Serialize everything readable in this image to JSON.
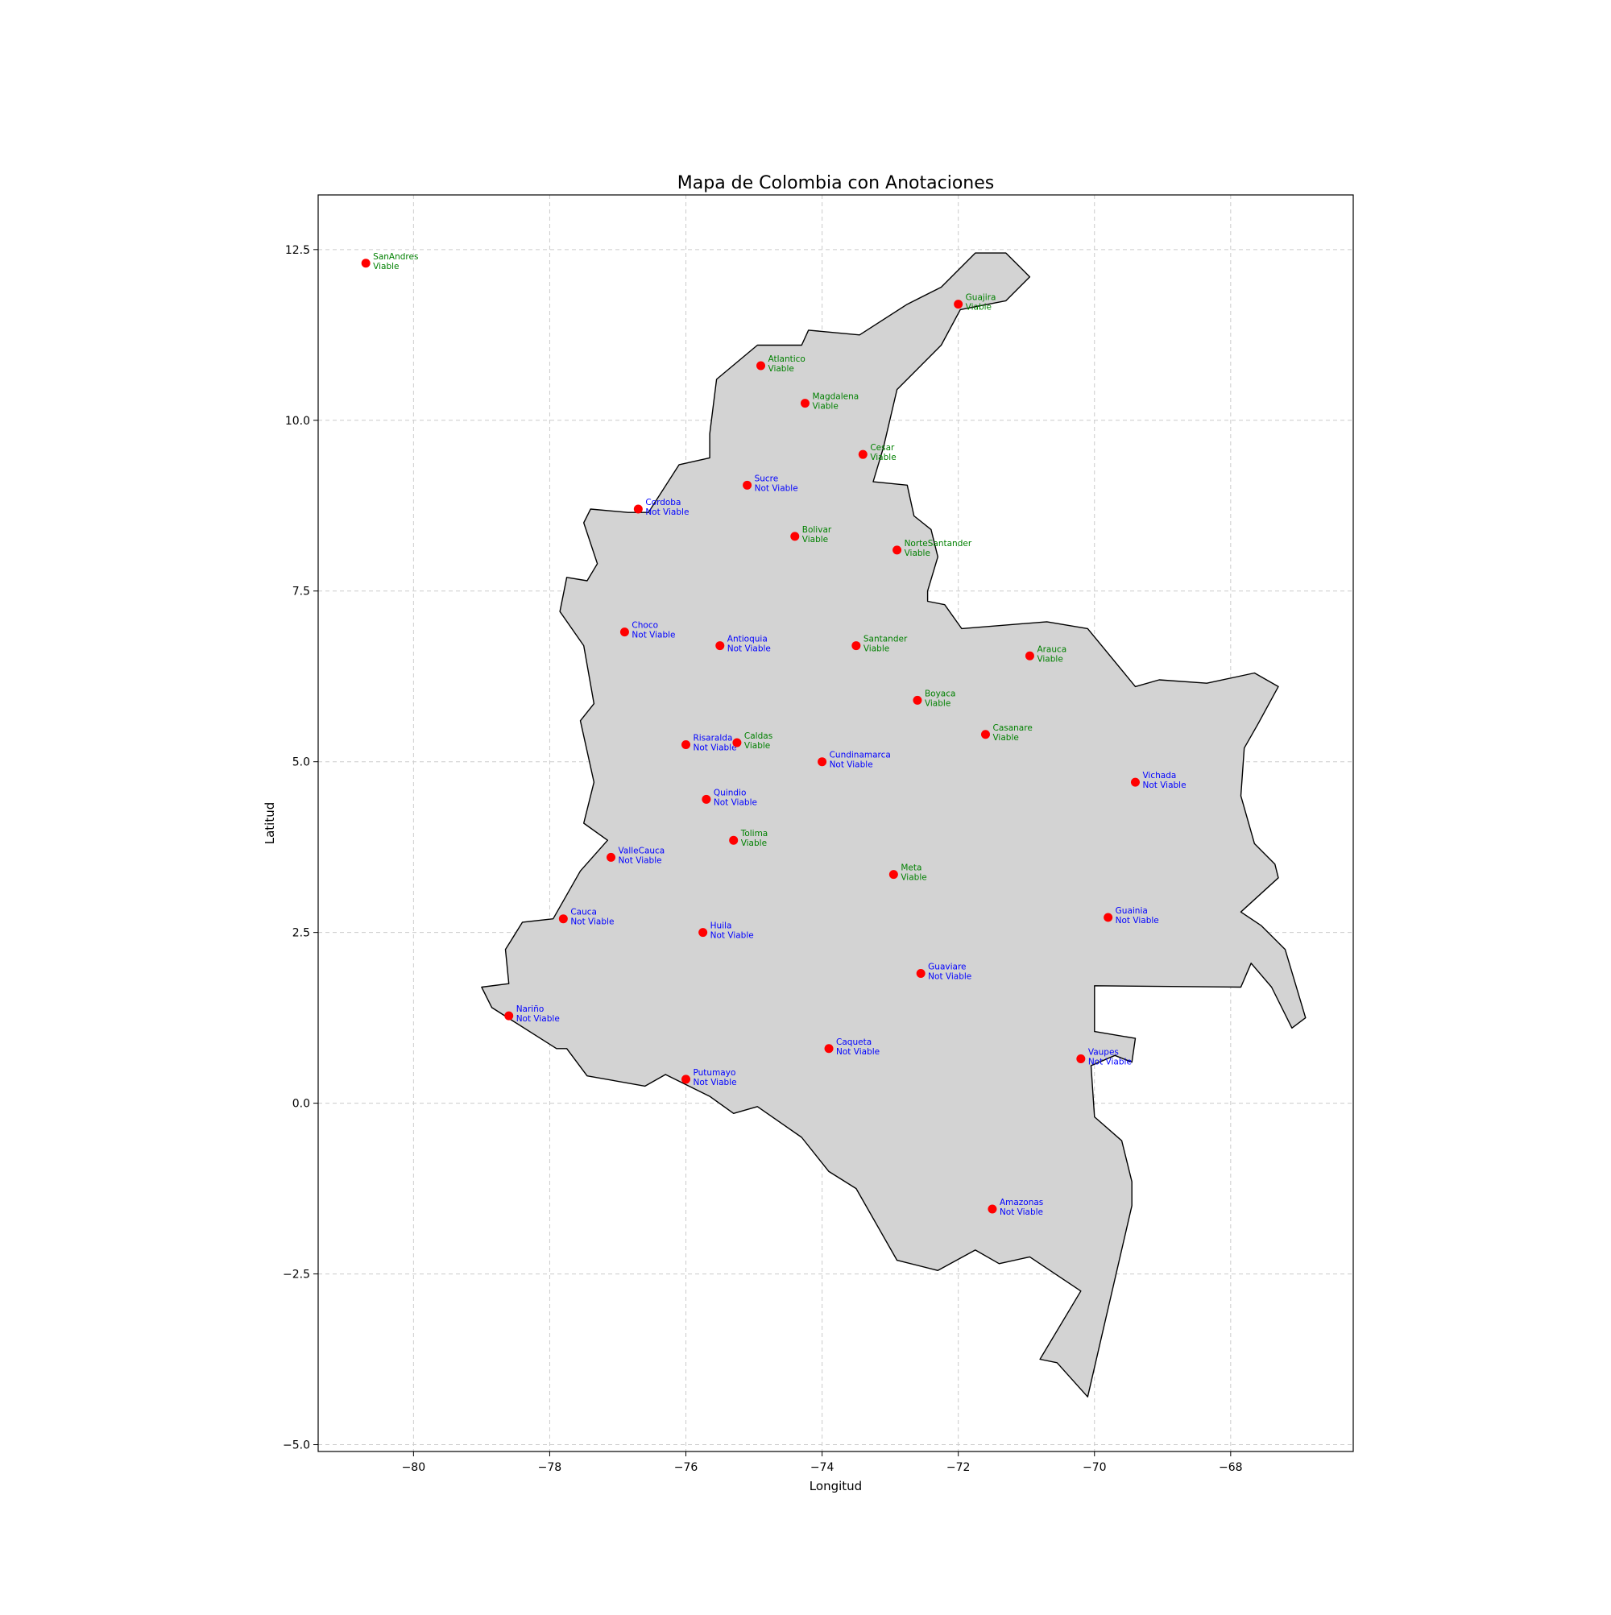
{
  "chart_data": {
    "type": "scatter",
    "title": "Mapa de Colombia con Anotaciones",
    "xlabel": "Longitud",
    "ylabel": "Latitud",
    "xlim": [
      -81.4,
      -66.2
    ],
    "ylim": [
      -5.1,
      13.3
    ],
    "xticks": [
      -80,
      -78,
      -76,
      -74,
      -72,
      -70,
      -68
    ],
    "yticks": [
      12.5,
      10.0,
      7.5,
      5.0,
      2.5,
      0.0,
      -2.5,
      -5.0
    ],
    "xtick_labels": [
      "−80",
      "−78",
      "−76",
      "−74",
      "−72",
      "−70",
      "−68"
    ],
    "ytick_labels": [
      "12.5",
      "10.0",
      "7.5",
      "5.0",
      "2.5",
      "0.0",
      "−2.5",
      "−5.0"
    ],
    "grid": true,
    "colors": {
      "marker": "#ff0000",
      "viable": "#008000",
      "not_viable": "#0000ff",
      "land_fill": "#d3d3d3",
      "land_edge": "#000000",
      "grid": "#cccccc"
    },
    "outline": [
      [
        -71.3,
        12.45
      ],
      [
        -70.95,
        12.1
      ],
      [
        -71.3,
        11.75
      ],
      [
        -71.97,
        11.62
      ],
      [
        -72.25,
        11.1
      ],
      [
        -72.9,
        10.45
      ],
      [
        -73.1,
        9.6
      ],
      [
        -73.25,
        9.1
      ],
      [
        -72.75,
        9.05
      ],
      [
        -72.65,
        8.6
      ],
      [
        -72.4,
        8.4
      ],
      [
        -72.3,
        8.0
      ],
      [
        -72.45,
        7.5
      ],
      [
        -72.45,
        7.35
      ],
      [
        -72.2,
        7.3
      ],
      [
        -71.95,
        6.95
      ],
      [
        -70.7,
        7.05
      ],
      [
        -70.1,
        6.95
      ],
      [
        -69.4,
        6.1
      ],
      [
        -69.05,
        6.2
      ],
      [
        -68.35,
        6.15
      ],
      [
        -67.65,
        6.3
      ],
      [
        -67.3,
        6.1
      ],
      [
        -67.6,
        5.55
      ],
      [
        -67.8,
        5.2
      ],
      [
        -67.85,
        4.5
      ],
      [
        -67.65,
        3.8
      ],
      [
        -67.35,
        3.5
      ],
      [
        -67.3,
        3.3
      ],
      [
        -67.85,
        2.8
      ],
      [
        -67.55,
        2.6
      ],
      [
        -67.2,
        2.25
      ],
      [
        -66.9,
        1.25
      ],
      [
        -67.1,
        1.1
      ],
      [
        -67.4,
        1.7
      ],
      [
        -67.7,
        2.05
      ],
      [
        -67.85,
        1.7
      ],
      [
        -70.0,
        1.72
      ],
      [
        -70.0,
        1.05
      ],
      [
        -69.4,
        0.95
      ],
      [
        -69.45,
        0.6
      ],
      [
        -69.7,
        0.7
      ],
      [
        -70.05,
        0.55
      ],
      [
        -70.0,
        -0.2
      ],
      [
        -69.6,
        -0.55
      ],
      [
        -69.45,
        -1.15
      ],
      [
        -69.45,
        -1.5
      ],
      [
        -70.1,
        -4.3
      ],
      [
        -70.55,
        -3.8
      ],
      [
        -70.8,
        -3.75
      ],
      [
        -70.2,
        -2.75
      ],
      [
        -70.95,
        -2.25
      ],
      [
        -71.4,
        -2.35
      ],
      [
        -71.75,
        -2.15
      ],
      [
        -72.3,
        -2.45
      ],
      [
        -72.9,
        -2.3
      ],
      [
        -73.5,
        -1.25
      ],
      [
        -73.9,
        -1.0
      ],
      [
        -74.3,
        -0.5
      ],
      [
        -74.95,
        -0.05
      ],
      [
        -75.3,
        -0.15
      ],
      [
        -75.65,
        0.1
      ],
      [
        -76.3,
        0.42
      ],
      [
        -76.6,
        0.25
      ],
      [
        -77.45,
        0.4
      ],
      [
        -77.75,
        0.8
      ],
      [
        -77.9,
        0.8
      ],
      [
        -78.85,
        1.4
      ],
      [
        -79.0,
        1.7
      ],
      [
        -78.6,
        1.75
      ],
      [
        -78.65,
        2.25
      ],
      [
        -78.4,
        2.65
      ],
      [
        -77.95,
        2.7
      ],
      [
        -77.55,
        3.4
      ],
      [
        -77.15,
        3.85
      ],
      [
        -77.5,
        4.1
      ],
      [
        -77.35,
        4.7
      ],
      [
        -77.55,
        5.6
      ],
      [
        -77.35,
        5.85
      ],
      [
        -77.5,
        6.7
      ],
      [
        -77.85,
        7.2
      ],
      [
        -77.75,
        7.7
      ],
      [
        -77.45,
        7.65
      ],
      [
        -77.3,
        7.9
      ],
      [
        -77.5,
        8.5
      ],
      [
        -77.4,
        8.7
      ],
      [
        -76.85,
        8.65
      ],
      [
        -76.55,
        8.65
      ],
      [
        -76.1,
        9.35
      ],
      [
        -75.65,
        9.45
      ],
      [
        -75.65,
        9.8
      ],
      [
        -75.55,
        10.6
      ],
      [
        -74.95,
        11.1
      ],
      [
        -74.3,
        11.1
      ],
      [
        -74.2,
        11.32
      ],
      [
        -73.45,
        11.25
      ],
      [
        -72.75,
        11.7
      ],
      [
        -72.25,
        11.95
      ],
      [
        -71.75,
        12.45
      ],
      [
        -71.3,
        12.45
      ]
    ],
    "points": [
      {
        "name": "SanAndres",
        "status": "Viable",
        "lon": -80.7,
        "lat": 12.3
      },
      {
        "name": "Guajira",
        "status": "Viable",
        "lon": -72.0,
        "lat": 11.7
      },
      {
        "name": "Atlantico",
        "status": "Viable",
        "lon": -74.9,
        "lat": 10.8
      },
      {
        "name": "Magdalena",
        "status": "Viable",
        "lon": -74.25,
        "lat": 10.25
      },
      {
        "name": "Cesar",
        "status": "Viable",
        "lon": -73.4,
        "lat": 9.5
      },
      {
        "name": "Sucre",
        "status": "Not Viable",
        "lon": -75.1,
        "lat": 9.05
      },
      {
        "name": "Cordoba",
        "status": "Not Viable",
        "lon": -76.7,
        "lat": 8.7
      },
      {
        "name": "Bolivar",
        "status": "Viable",
        "lon": -74.4,
        "lat": 8.3
      },
      {
        "name": "NorteSantander",
        "status": "Viable",
        "lon": -72.9,
        "lat": 8.1
      },
      {
        "name": "Choco",
        "status": "Not Viable",
        "lon": -76.9,
        "lat": 6.9
      },
      {
        "name": "Antioquia",
        "status": "Not Viable",
        "lon": -75.5,
        "lat": 6.7
      },
      {
        "name": "Santander",
        "status": "Viable",
        "lon": -73.5,
        "lat": 6.7
      },
      {
        "name": "Arauca",
        "status": "Viable",
        "lon": -70.95,
        "lat": 6.55
      },
      {
        "name": "Boyaca",
        "status": "Viable",
        "lon": -72.6,
        "lat": 5.9
      },
      {
        "name": "Casanare",
        "status": "Viable",
        "lon": -71.6,
        "lat": 5.4
      },
      {
        "name": "Risaralda",
        "status": "Not Viable",
        "lon": -76.0,
        "lat": 5.25
      },
      {
        "name": "Caldas",
        "status": "Viable",
        "lon": -75.25,
        "lat": 5.28
      },
      {
        "name": "Cundinamarca",
        "status": "Not Viable",
        "lon": -74.0,
        "lat": 5.0
      },
      {
        "name": "Vichada",
        "status": "Not Viable",
        "lon": -69.4,
        "lat": 4.7
      },
      {
        "name": "Quindio",
        "status": "Not Viable",
        "lon": -75.7,
        "lat": 4.45
      },
      {
        "name": "Tolima",
        "status": "Viable",
        "lon": -75.3,
        "lat": 3.85
      },
      {
        "name": "ValleCauca",
        "status": "Not Viable",
        "lon": -77.1,
        "lat": 3.6
      },
      {
        "name": "Meta",
        "status": "Viable",
        "lon": -72.95,
        "lat": 3.35
      },
      {
        "name": "Cauca",
        "status": "Not Viable",
        "lon": -77.8,
        "lat": 2.7
      },
      {
        "name": "Guainia",
        "status": "Not Viable",
        "lon": -69.8,
        "lat": 2.72
      },
      {
        "name": "Huila",
        "status": "Not Viable",
        "lon": -75.75,
        "lat": 2.5
      },
      {
        "name": "Guaviare",
        "status": "Not Viable",
        "lon": -72.55,
        "lat": 1.9
      },
      {
        "name": "Nariño",
        "status": "Not Viable",
        "lon": -78.6,
        "lat": 1.28
      },
      {
        "name": "Caqueta",
        "status": "Not Viable",
        "lon": -73.9,
        "lat": 0.8
      },
      {
        "name": "Vaupes",
        "status": "Not Viable",
        "lon": -70.2,
        "lat": 0.65
      },
      {
        "name": "Putumayo",
        "status": "Not Viable",
        "lon": -76.0,
        "lat": 0.35
      },
      {
        "name": "Amazonas",
        "status": "Not Viable",
        "lon": -71.5,
        "lat": -1.55
      }
    ]
  }
}
